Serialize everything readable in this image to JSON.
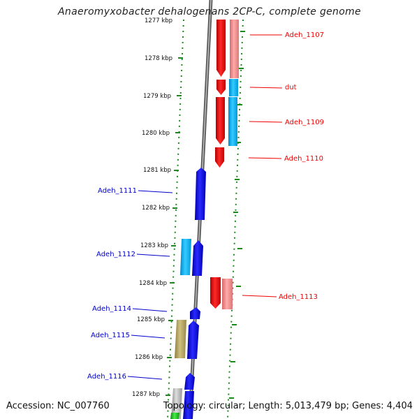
{
  "title": "Anaeromyxobacter dehalogenans 2CP-C, complete genome",
  "accession": "Accession: NC_007760",
  "topology": "Topology: circular; Length: 5,013,479 bp; Genes: 4,404",
  "kbp_labels": [
    "1277 kbp",
    "1278 kbp",
    "1279 kbp",
    "1280 kbp",
    "1281 kbp",
    "1282 kbp",
    "1283 kbp",
    "1284 kbp",
    "1285 kbp",
    "1286 kbp",
    "1287 kbp"
  ],
  "colors": {
    "forward_cds": "#0000ee",
    "forward_cds_alt": "#00aaff",
    "reverse_cds": "#ee0000",
    "reverse_cds_alt": "#ee7777",
    "olive": "#b5a35a",
    "gray": "#aaaaaa",
    "green": "#22cc22",
    "backbone": "#777777",
    "tick": "#1b8a1b"
  },
  "genes_right": [
    {
      "name": "Adeh_1107",
      "color": "#ee0000"
    },
    {
      "name": "dut",
      "color": "#ee0000"
    },
    {
      "name": "Adeh_1109",
      "color": "#ee0000"
    },
    {
      "name": "Adeh_1110",
      "color": "#ee0000"
    },
    {
      "name": "Adeh_1113",
      "color": "#ee0000"
    }
  ],
  "genes_left": [
    {
      "name": "Adeh_1111",
      "color": "#0000cc"
    },
    {
      "name": "Adeh_1112",
      "color": "#0000cc"
    },
    {
      "name": "Adeh_1114",
      "color": "#0000cc"
    },
    {
      "name": "Adeh_1115",
      "color": "#0000cc"
    },
    {
      "name": "Adeh_1116",
      "color": "#0000cc"
    }
  ]
}
